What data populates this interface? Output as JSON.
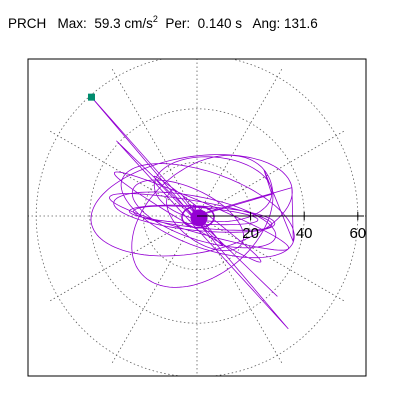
{
  "header": {
    "station": "PRCH",
    "max_label": "Max:",
    "max_value": "59.3",
    "max_unit_base": "cm/s",
    "max_unit_exp": "2",
    "per_label": "Per:",
    "per_value": "0.140 s",
    "ang_label": "Ang:",
    "ang_value": "131.6"
  },
  "chart_data": {
    "type": "scatter",
    "title": "",
    "xlabel": "",
    "ylabel": "",
    "grid": true,
    "rlim": [
      0,
      64
    ],
    "radial_rings": [
      20,
      40,
      60
    ],
    "radial_tick_labels": [
      "20",
      "40",
      "60"
    ],
    "angular_gridlines_deg": [
      0,
      30,
      60,
      90,
      120,
      150,
      180,
      210,
      240,
      270,
      300,
      330
    ],
    "trace_color": "#9400D3",
    "marker_color": "#008C6E",
    "peak_point": {
      "amplitude": 59.3,
      "angle_deg": 131.6
    },
    "trace_outline": [
      {
        "x": 0,
        "y": 0
      },
      {
        "x": -36,
        "y": 35
      },
      {
        "x": -39,
        "y": 44
      },
      {
        "x": -20,
        "y": 22
      },
      {
        "x": 30,
        "y": -30
      },
      {
        "x": 34,
        "y": -42
      },
      {
        "x": 15,
        "y": -17
      },
      {
        "x": -40,
        "y": 15
      },
      {
        "x": 36,
        "y": -18
      },
      {
        "x": 8,
        "y": 22
      },
      {
        "x": -12,
        "y": -20
      }
    ]
  },
  "colors": {
    "background": "#ffffff",
    "frame": "#000000",
    "grid": "#606060",
    "trace": "#9400D3",
    "marker": "#008C6E"
  }
}
